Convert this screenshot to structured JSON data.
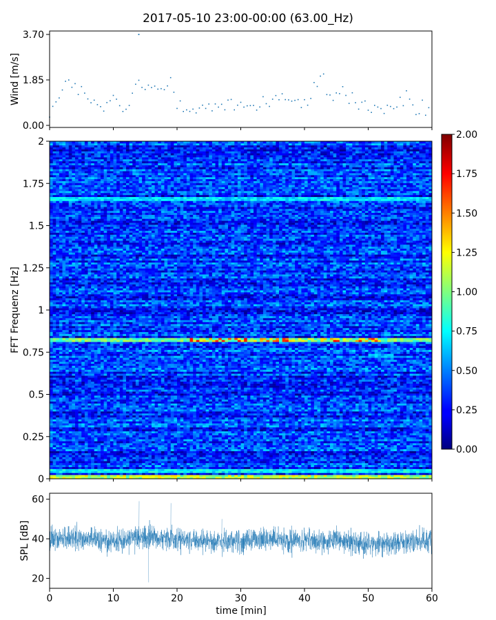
{
  "title": "2017-05-10 23:00-00:00 (63.00_Hz)",
  "chart_data": [
    {
      "type": "scatter",
      "panel": "wind",
      "ylabel": "Wind [m/s]",
      "xlim": [
        0,
        60
      ],
      "ylim": [
        0,
        3.7
      ],
      "yticks": [
        "0.00",
        "1.85",
        "3.70"
      ],
      "color": "#1f77b4",
      "points_per_minute": 60,
      "trend": [
        [
          0,
          0.6
        ],
        [
          2,
          1.2
        ],
        [
          3,
          2.0
        ],
        [
          4,
          1.6
        ],
        [
          6,
          1.0
        ],
        [
          8,
          0.7
        ],
        [
          10,
          0.9
        ],
        [
          12,
          0.6
        ],
        [
          13,
          1.2
        ],
        [
          14,
          1.8
        ],
        [
          15,
          1.5
        ],
        [
          16,
          1.4
        ],
        [
          18,
          1.5
        ],
        [
          19,
          1.9
        ],
        [
          20,
          1.0
        ],
        [
          22,
          0.8
        ],
        [
          26,
          0.7
        ],
        [
          30,
          0.8
        ],
        [
          34,
          0.9
        ],
        [
          36,
          1.3
        ],
        [
          38,
          1.0
        ],
        [
          40,
          0.8
        ],
        [
          42,
          1.5
        ],
        [
          43,
          1.9
        ],
        [
          44,
          1.2
        ],
        [
          46,
          1.4
        ],
        [
          48,
          0.9
        ],
        [
          50,
          0.8
        ],
        [
          52,
          0.6
        ],
        [
          54,
          0.8
        ],
        [
          56,
          1.0
        ],
        [
          58,
          0.6
        ],
        [
          60,
          0.8
        ]
      ],
      "max_value": 3.7,
      "max_at_minute": 14
    },
    {
      "type": "heatmap",
      "panel": "spectrogram",
      "ylabel": "FFT Frequenz [Hz]",
      "xlim": [
        0,
        60
      ],
      "ylim": [
        0,
        2
      ],
      "yticks": [
        "0",
        "0.25",
        "0.5",
        "0.75",
        "1",
        "1.25",
        "1.5",
        "1.75",
        "2"
      ],
      "colormap": "jet",
      "clim": [
        0,
        2
      ],
      "colorbar_ticks": [
        "0.00",
        "0.25",
        "0.50",
        "0.75",
        "1.00",
        "1.25",
        "1.50",
        "1.75",
        "2.00"
      ],
      "time_bins": 120,
      "freq_bins": 170,
      "background_level": 0.35,
      "bands": [
        {
          "freq": 0.82,
          "level": 1.05,
          "peak_level": 1.6,
          "peak_from_minute": 22,
          "peak_to_minute": 52
        },
        {
          "freq": 1.66,
          "level": 0.75
        },
        {
          "freq": 0.73,
          "level": 0.65,
          "from_minute": 50,
          "to_minute": 54
        },
        {
          "freq": 0.05,
          "level": 0.8
        },
        {
          "freq": 0.01,
          "level": 1.2
        }
      ]
    },
    {
      "type": "line",
      "panel": "spl",
      "ylabel": "SPL [dB]",
      "xlabel": "time [min]",
      "xlim": [
        0,
        60
      ],
      "xticks": [
        "0",
        "10",
        "20",
        "30",
        "40",
        "50",
        "60"
      ],
      "ylim": [
        15,
        63
      ],
      "yticks": [
        "20",
        "40",
        "60"
      ],
      "color": "#1f77b4",
      "samples": 2400,
      "mean_trend": [
        [
          0,
          40
        ],
        [
          5,
          40
        ],
        [
          10,
          39
        ],
        [
          15,
          41
        ],
        [
          20,
          40
        ],
        [
          25,
          39
        ],
        [
          30,
          39
        ],
        [
          35,
          40
        ],
        [
          40,
          39
        ],
        [
          45,
          39
        ],
        [
          50,
          37
        ],
        [
          55,
          38
        ],
        [
          60,
          39
        ]
      ],
      "spread": 7,
      "spikes": [
        [
          14,
          59
        ],
        [
          19,
          58
        ],
        [
          15.5,
          18
        ],
        [
          27,
          50
        ]
      ]
    }
  ]
}
